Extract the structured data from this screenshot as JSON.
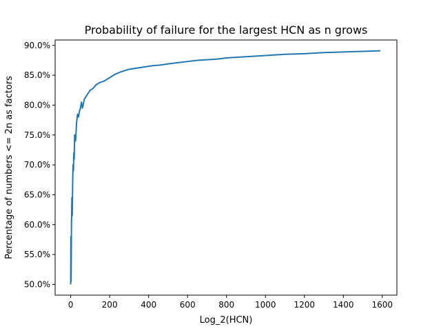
{
  "chart_data": {
    "type": "line",
    "title": "Probability of failure for the largest HCN as n grows",
    "xlabel": "Log_2(HCN)",
    "ylabel": "Percentage of numbers <= 2n as factors",
    "xlim": [
      -80,
      1675
    ],
    "ylim": [
      48.2,
      90.9
    ],
    "xticks": [
      0,
      200,
      400,
      600,
      800,
      1000,
      1200,
      1400,
      1600
    ],
    "xtick_labels": [
      "0",
      "200",
      "400",
      "600",
      "800",
      "1000",
      "1200",
      "1400",
      "1600"
    ],
    "yticks": [
      50,
      55,
      60,
      65,
      70,
      75,
      80,
      85,
      90
    ],
    "ytick_labels": [
      "50.0%",
      "55.0%",
      "60.0%",
      "65.0%",
      "70.0%",
      "75.0%",
      "80.0%",
      "85.0%",
      "90.0%"
    ],
    "grid": false,
    "legend": "none",
    "series": [
      {
        "color": "#1f77b4",
        "x": [
          0,
          1,
          2,
          3,
          4,
          5,
          6,
          8,
          10,
          12,
          14,
          16,
          18,
          20,
          25,
          30,
          35,
          40,
          45,
          50,
          55,
          60,
          70,
          80,
          90,
          100,
          115,
          130,
          150,
          170,
          200,
          230,
          260,
          300,
          340,
          380,
          420,
          460,
          500,
          550,
          600,
          650,
          700,
          750,
          800,
          850,
          900,
          950,
          1000,
          1100,
          1200,
          1300,
          1400,
          1500,
          1590
        ],
        "y": [
          50.0,
          58.0,
          50.5,
          55.0,
          60.5,
          62.0,
          64.5,
          61.5,
          67.0,
          70.0,
          69.0,
          72.0,
          71.0,
          75.0,
          74.0,
          77.0,
          78.5,
          78.0,
          79.0,
          79.5,
          80.5,
          79.5,
          81.0,
          81.5,
          82.0,
          82.5,
          82.8,
          83.4,
          83.8,
          84.0,
          84.6,
          85.2,
          85.6,
          86.0,
          86.2,
          86.4,
          86.6,
          86.7,
          86.9,
          87.1,
          87.3,
          87.5,
          87.6,
          87.7,
          87.9,
          88.0,
          88.1,
          88.2,
          88.3,
          88.5,
          88.6,
          88.8,
          88.9,
          89.0,
          89.1
        ]
      }
    ]
  }
}
